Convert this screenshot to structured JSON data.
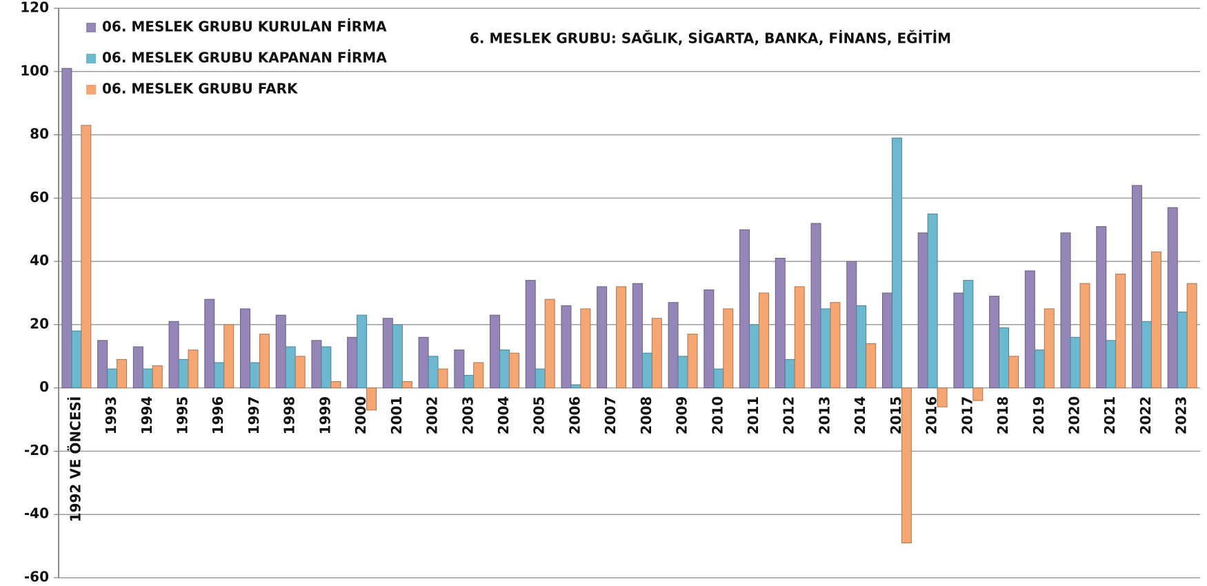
{
  "chart_data": {
    "type": "bar",
    "title": "6. MESLEK GRUBU: SAĞLIK, SİGARTA, BANKA, FİNANS, EĞİTİM",
    "categories": [
      "1992 VE ÖNCESİ",
      "1993",
      "1994",
      "1995",
      "1996",
      "1997",
      "1998",
      "1999",
      "2000",
      "2001",
      "2002",
      "2003",
      "2004",
      "2005",
      "2006",
      "2007",
      "2008",
      "2009",
      "2010",
      "2011",
      "2012",
      "2013",
      "2014",
      "2015",
      "2016",
      "2017",
      "2018",
      "2019",
      "2020",
      "2021",
      "2022",
      "2023"
    ],
    "series": [
      {
        "name": "06. MESLEK GRUBU KURULAN FİRMA",
        "color": "#9486b6",
        "values": [
          101,
          15,
          13,
          21,
          28,
          25,
          23,
          15,
          16,
          22,
          16,
          12,
          23,
          34,
          26,
          32,
          33,
          27,
          31,
          50,
          41,
          52,
          40,
          30,
          49,
          30,
          29,
          37,
          49,
          51,
          64,
          57
        ]
      },
      {
        "name": "06. MESLEK GRUBU KAPANAN FİRMA",
        "color": "#6cb8cf",
        "values": [
          18,
          6,
          6,
          9,
          8,
          8,
          13,
          13,
          23,
          20,
          10,
          4,
          12,
          6,
          1,
          0,
          11,
          10,
          6,
          20,
          9,
          25,
          26,
          79,
          55,
          34,
          19,
          12,
          16,
          15,
          21,
          24
        ]
      },
      {
        "name": "06. MESLEK GRUBU FARK",
        "color": "#f6a673",
        "values": [
          83,
          9,
          7,
          12,
          20,
          17,
          10,
          2,
          -7,
          2,
          6,
          8,
          11,
          28,
          25,
          32,
          22,
          17,
          25,
          30,
          32,
          27,
          14,
          -49,
          -6,
          -4,
          10,
          25,
          33,
          36,
          43,
          33
        ]
      }
    ],
    "ylim": [
      -60,
      120
    ],
    "yticks": [
      -60,
      -40,
      -20,
      0,
      20,
      40,
      60,
      80,
      100,
      120
    ],
    "grid": true,
    "legend": "upper left"
  }
}
